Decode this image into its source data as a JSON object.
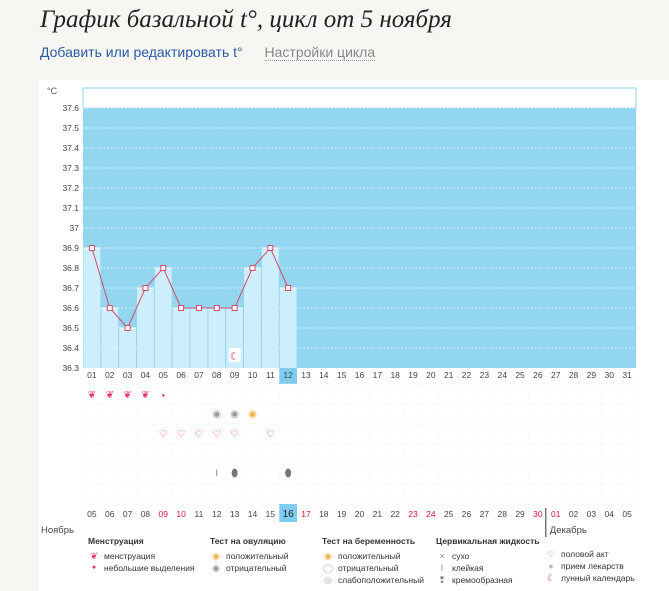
{
  "header": {
    "title": "График базальной t°, цикл от 5 ноября",
    "edit_link": "Добавить или редактировать t°",
    "settings_link": "Настройки цикла"
  },
  "chart_data": {
    "type": "line",
    "ylabel": "°C",
    "y_ticks": [
      "37.6",
      "37.5",
      "37.4",
      "37.3",
      "37.2",
      "37.1",
      "37",
      "36.9",
      "36.8",
      "36.7",
      "36.6",
      "36.5",
      "36.4",
      "36.3"
    ],
    "ylim": [
      36.3,
      37.7
    ],
    "day_labels": [
      "01",
      "02",
      "03",
      "04",
      "05",
      "06",
      "07",
      "08",
      "09",
      "10",
      "11",
      "12",
      "13",
      "14",
      "15",
      "16",
      "17",
      "18",
      "19",
      "20",
      "21",
      "22",
      "23",
      "24",
      "25",
      "26",
      "27",
      "28",
      "29",
      "30",
      "31"
    ],
    "values": [
      36.9,
      36.6,
      36.5,
      36.7,
      36.8,
      36.6,
      36.6,
      36.6,
      36.6,
      36.8,
      36.9,
      36.7
    ],
    "current_day_index": 11,
    "date_labels": [
      "05",
      "06",
      "07",
      "08",
      "09",
      "10",
      "11",
      "12",
      "13",
      "14",
      "15",
      "16",
      "17",
      "18",
      "19",
      "20",
      "21",
      "22",
      "23",
      "24",
      "25",
      "26",
      "27",
      "28",
      "29",
      "30",
      "01",
      "02",
      "03",
      "04",
      "05"
    ],
    "date_red_indexes": [
      4,
      5,
      12,
      18,
      19,
      25
    ],
    "month_labels": [
      "Ноябрь",
      "Декабрь"
    ],
    "month_break_index": 26,
    "rows": {
      "menstruation": [
        "heavy",
        "heavy",
        "heavy",
        "heavy",
        "light"
      ],
      "ovulation_negative_indexes": [
        7,
        8
      ],
      "ovulation_positive_indexes": [
        9
      ],
      "intercourse_indexes": [
        4,
        5,
        6,
        7,
        8,
        10
      ],
      "sticky_indexes": [
        7
      ],
      "creamy_indexes": [
        8,
        11
      ],
      "lunar_calendar_index": 8
    },
    "colors": {
      "area": "#92d6f0",
      "bar": "#cdeefc",
      "line": "#d64a6a",
      "current_day": "#7fcdee",
      "red_date": "#d4143f"
    }
  },
  "legend": {
    "menstruation": {
      "title": "Менструация",
      "items": [
        "менструация",
        "небольшие выделения"
      ]
    },
    "ovulation": {
      "title": "Тест на овуляцию",
      "items": [
        "положительный",
        "отрицательный"
      ]
    },
    "pregnancy": {
      "title": "Тест на беременность",
      "items": [
        "положительный",
        "отрицательный",
        "слабоположительный"
      ]
    },
    "cervical": {
      "title": "Цервикальная жидкость",
      "items": [
        "сухо",
        "клейкая",
        "кремообразная"
      ]
    },
    "other": {
      "items": [
        "половой акт",
        "прием лекарств",
        "лунный календарь"
      ]
    }
  }
}
